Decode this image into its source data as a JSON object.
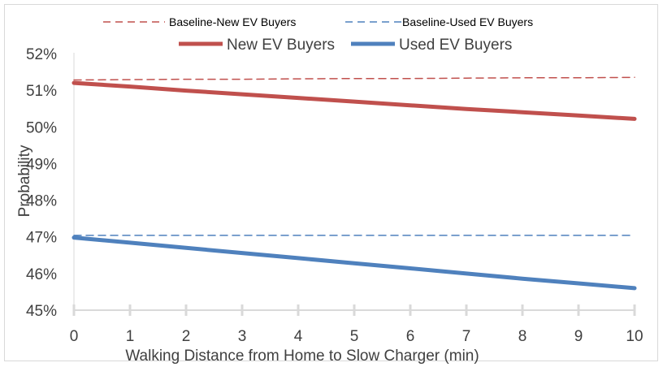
{
  "chart_data": {
    "type": "line",
    "x": [
      0,
      1,
      2,
      3,
      4,
      5,
      6,
      7,
      8,
      9,
      10
    ],
    "xlabel": "Walking Distance from Home to Slow Charger (min)",
    "ylabel": "Probability",
    "ylim": [
      45,
      52
    ],
    "xlim": [
      0,
      10
    ],
    "yticks": [
      "45%",
      "46%",
      "47%",
      "48%",
      "49%",
      "50%",
      "51%",
      "52%"
    ],
    "xticks": [
      "0",
      "1",
      "2",
      "3",
      "4",
      "5",
      "6",
      "7",
      "8",
      "9",
      "10"
    ],
    "grid": false,
    "legend_position": "top",
    "series": [
      {
        "name": "Baseline-New EV Buyers",
        "style": "dashed",
        "color": "#c0504d",
        "values": [
          51.28,
          51.29,
          51.3,
          51.3,
          51.31,
          51.32,
          51.32,
          51.33,
          51.34,
          51.34,
          51.35
        ]
      },
      {
        "name": "Baseline-Used EV Buyers",
        "style": "dashed",
        "color": "#4f81bd",
        "values": [
          47.04,
          47.04,
          47.04,
          47.04,
          47.04,
          47.04,
          47.04,
          47.04,
          47.04,
          47.04,
          47.04
        ]
      },
      {
        "name": "New EV Buyers",
        "style": "solid",
        "color": "#c0504d",
        "values": [
          51.2,
          51.1,
          50.99,
          50.89,
          50.79,
          50.69,
          50.59,
          50.49,
          50.4,
          50.31,
          50.22
        ]
      },
      {
        "name": "Used EV Buyers",
        "style": "solid",
        "color": "#4f81bd",
        "values": [
          46.98,
          46.84,
          46.7,
          46.56,
          46.42,
          46.28,
          46.14,
          46.0,
          45.86,
          45.73,
          45.6
        ]
      }
    ]
  }
}
